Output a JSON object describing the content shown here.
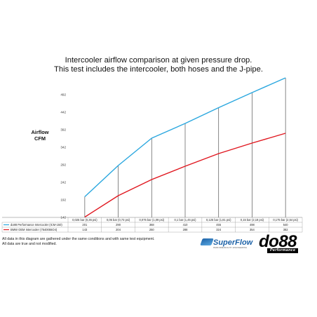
{
  "title_line1": "Intercooler airflow comparison at given pressure drop.",
  "title_line2": "This test includes the intercooler, both hoses and the J-pipe.",
  "footnote_line1": "All data in this diagram are gathered under the same conditions and with same test equipment.",
  "footnote_line2": "All data are true and not modified.",
  "logos": {
    "superflow": "SuperFlow",
    "superflow_sub": "PERFORMANCE BY ENGINEERING",
    "do88": "do88",
    "do88_sub": "Performance"
  },
  "colors": {
    "do88_series": "#2aa7df",
    "oem_series": "#e0171f",
    "grid": "#555555"
  },
  "chart_data": {
    "type": "line",
    "ylabel": "Airflow\nCFM",
    "ylim": [
      142,
      542
    ],
    "yticks": [
      142,
      192,
      242,
      292,
      342,
      392,
      442,
      492
    ],
    "categories": [
      "0,025 bar (0,36 psi)",
      "0,05 bar (0,73 psi)",
      "0,075 bar (1,09 psi)",
      "0,1 bar (1,45 psi)",
      "0,125 bar (1,81 psi)",
      "0,15 bar (2,18 psi)",
      "0,175 bar (2,54 psi)"
    ],
    "series": [
      {
        "name": "do88 Performance Intercooler (ICM-150)",
        "color": "#2aa7df",
        "values": [
          201,
          290,
          368,
          410,
          455,
          498,
          540
        ]
      },
      {
        "name": "BMW OEM Intercooler (7540055O4)",
        "color": "#e0171f",
        "values": [
          143,
          204,
          250,
          288,
          324,
          354,
          382
        ]
      }
    ],
    "grid": "vertical lines at each category",
    "legend": "table below chart"
  }
}
